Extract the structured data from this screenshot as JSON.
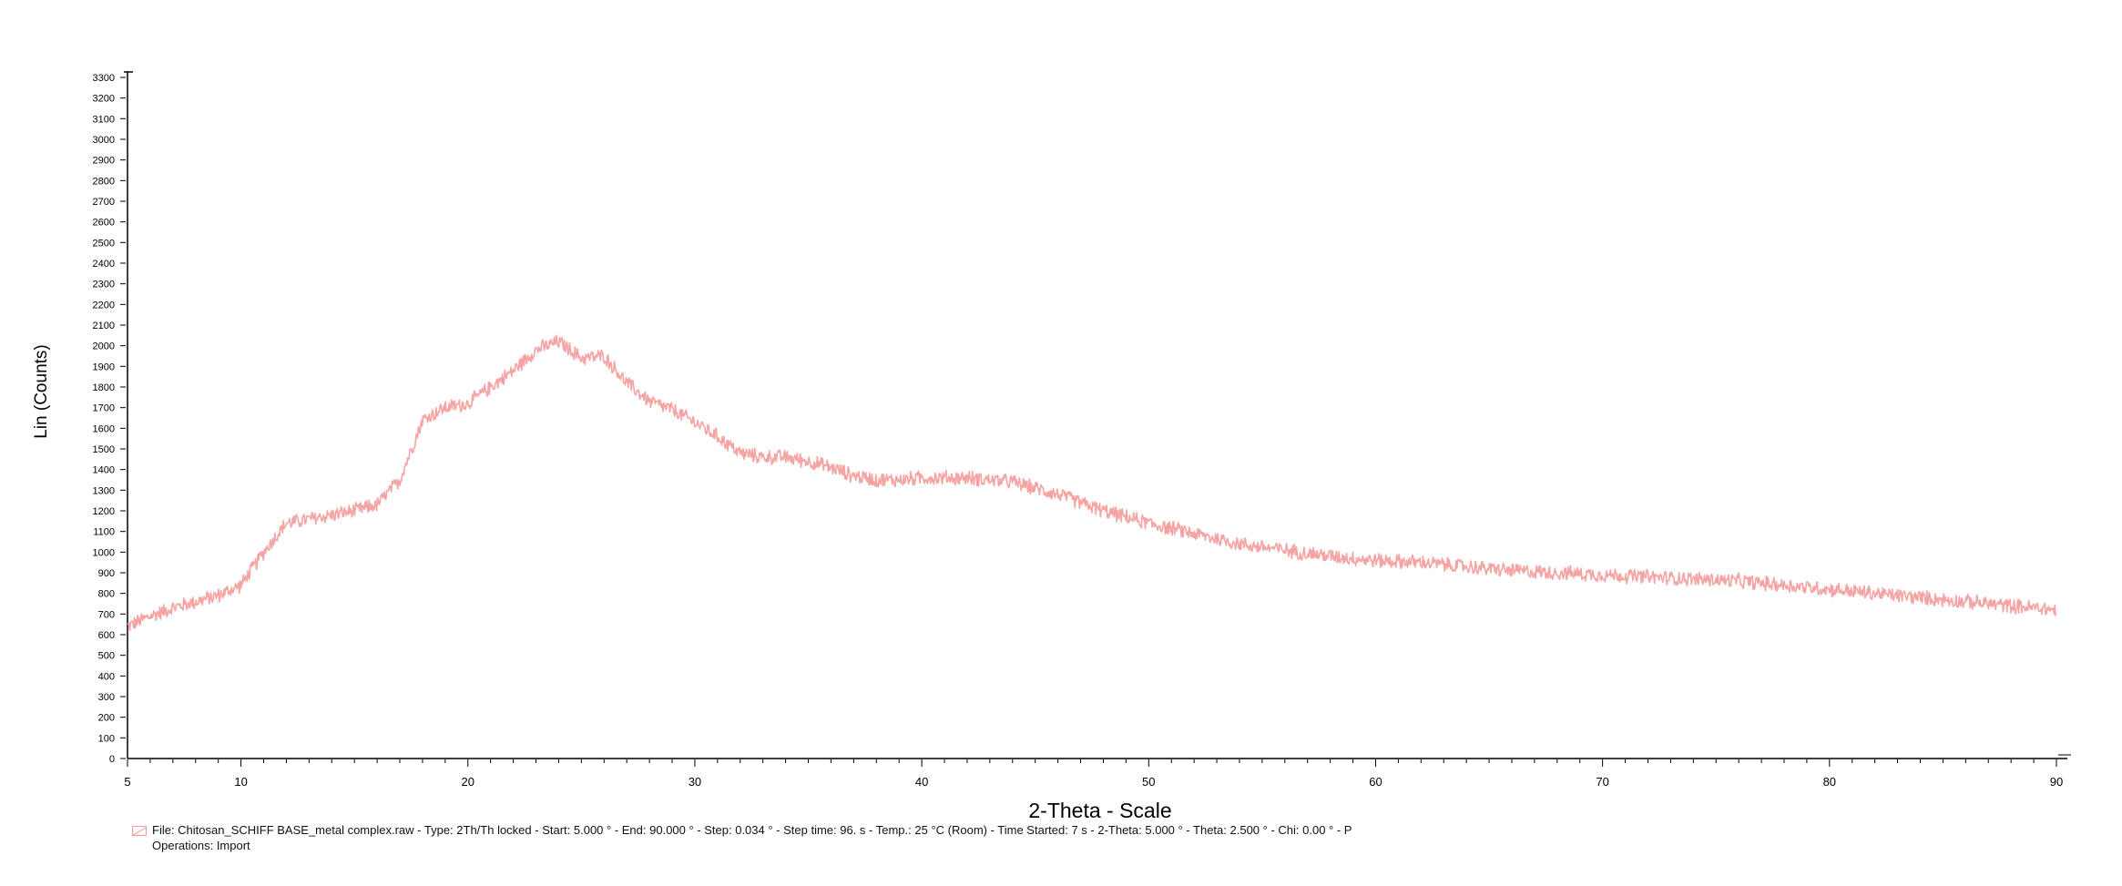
{
  "colors": {
    "series": "#f5a3a3",
    "axis": "#000000",
    "background": "#ffffff"
  },
  "chart_data": {
    "type": "line",
    "title": "",
    "xlabel": "2-Theta - Scale",
    "ylabel": "Lin (Counts)",
    "xlim": [
      5,
      90
    ],
    "ylim": [
      0,
      3300
    ],
    "grid": false,
    "x_ticks": [
      "5",
      "10",
      "20",
      "30",
      "40",
      "50",
      "60",
      "70",
      "80",
      "90"
    ],
    "y_ticks": [
      "0",
      "100",
      "200",
      "300",
      "400",
      "500",
      "600",
      "700",
      "800",
      "900",
      "1000",
      "1100",
      "1200",
      "1300",
      "1400",
      "1500",
      "1600",
      "1700",
      "1800",
      "1900",
      "2000",
      "2100",
      "2200",
      "2300",
      "2400",
      "2500",
      "2600",
      "2700",
      "2800",
      "2900",
      "3000",
      "3100",
      "3200",
      "3300"
    ],
    "series": [
      {
        "noise_amplitude": 40,
        "x": [
          5,
          6,
          7,
          8,
          9,
          10,
          11,
          12,
          13,
          14,
          15,
          16,
          17,
          18,
          19,
          20,
          21,
          22,
          23,
          24,
          25,
          26,
          27,
          28,
          29,
          30,
          31,
          32,
          33,
          34,
          35,
          36,
          37,
          38,
          39,
          40,
          41,
          42,
          43,
          44,
          45,
          46,
          47,
          48,
          49,
          50,
          52,
          54,
          56,
          58,
          60,
          62,
          64,
          66,
          68,
          70,
          72,
          74,
          76,
          78,
          80,
          82,
          84,
          86,
          88,
          90
        ],
        "y": [
          640,
          690,
          730,
          760,
          790,
          840,
          1000,
          1140,
          1160,
          1180,
          1200,
          1230,
          1350,
          1640,
          1700,
          1720,
          1800,
          1880,
          1980,
          2020,
          1940,
          1950,
          1820,
          1730,
          1690,
          1630,
          1560,
          1480,
          1460,
          1460,
          1440,
          1410,
          1370,
          1350,
          1350,
          1360,
          1360,
          1360,
          1350,
          1340,
          1310,
          1280,
          1240,
          1200,
          1170,
          1140,
          1090,
          1040,
          1010,
          980,
          960,
          950,
          930,
          910,
          900,
          890,
          880,
          870,
          860,
          840,
          820,
          800,
          780,
          760,
          740,
          720
        ]
      }
    ]
  },
  "legend": {
    "line1": "File: Chitosan_SCHIFF BASE_metal complex.raw - Type: 2Th/Th locked - Start: 5.000 ° - End: 90.000 ° - Step: 0.034 ° - Step time: 96. s - Temp.: 25 °C (Room) - Time Started: 7 s - 2-Theta: 5.000 ° - Theta: 2.500 ° - Chi: 0.00 ° - P",
    "line2": "Operations: Import"
  }
}
